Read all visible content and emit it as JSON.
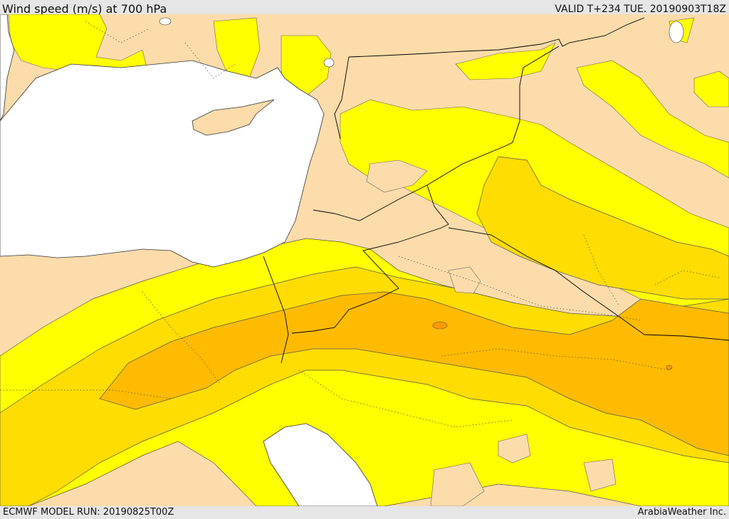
{
  "header": {
    "title": "Wind speed (m/s) at 700 hPa",
    "valid": "VALID T+234 TUE. 20190903T18Z"
  },
  "footer": {
    "model_run": "ECMWF MODEL RUN: 20190825T00Z",
    "provider": "ArabiaWeather Inc."
  },
  "map": {
    "colors": {
      "land": "#fddcab",
      "sea": "#ffffff",
      "wind_band_1": "#ffff00",
      "wind_band_2": "#ffdd00",
      "wind_band_3": "#ffbb00",
      "wind_band_4": "#ff9900",
      "border": "#000000",
      "contour": "#555555"
    }
  }
}
